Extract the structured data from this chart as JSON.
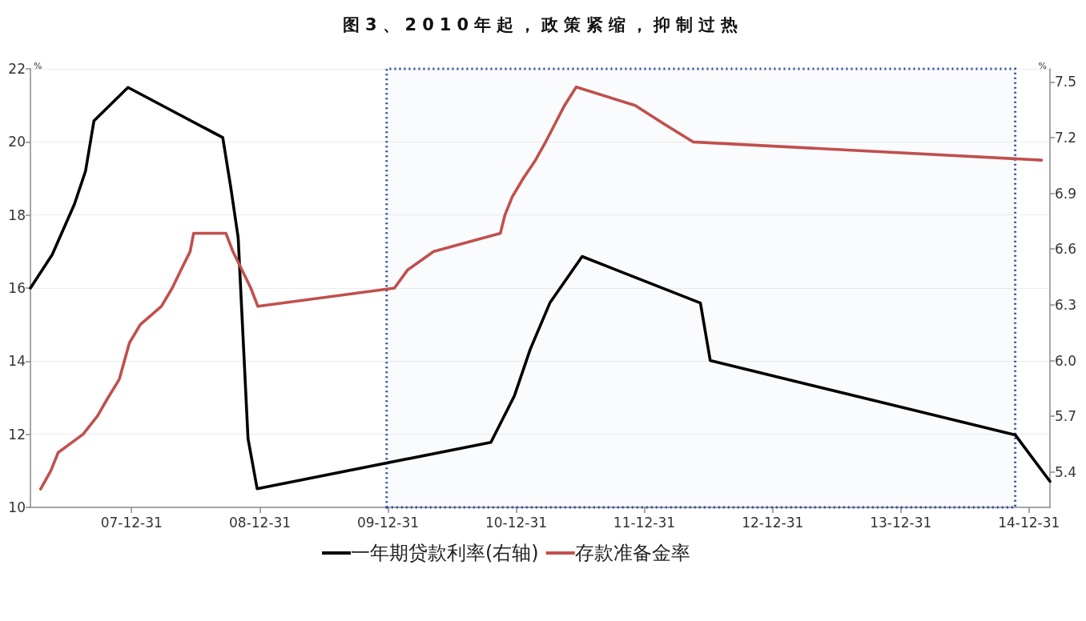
{
  "chart_data": {
    "type": "line",
    "title": "图3、2010年起，政策紧缩，抑制过热",
    "ylabel": "%",
    "y2label": "%",
    "xlim": [
      "2007-03-18",
      "2015-03-01"
    ],
    "xticks": [
      {
        "value": "2007-12-31",
        "label": "07-12-31"
      },
      {
        "value": "2008-12-31",
        "label": "08-12-31"
      },
      {
        "value": "2009-12-31",
        "label": "09-12-31"
      },
      {
        "value": "2010-12-31",
        "label": "10-12-31"
      },
      {
        "value": "2011-12-31",
        "label": "11-12-31"
      },
      {
        "value": "2012-12-31",
        "label": "12-12-31"
      },
      {
        "value": "2013-12-31",
        "label": "13-12-31"
      },
      {
        "value": "2014-12-31",
        "label": "14-12-31"
      }
    ],
    "ylim": [
      10,
      22
    ],
    "yticks": [
      10,
      12,
      14,
      16,
      18,
      20,
      22
    ],
    "y2lim": [
      5.21,
      7.57
    ],
    "y2ticks": [
      5.4,
      5.7,
      {
        "value": 6,
        "label": "6.0"
      },
      6.3,
      6.6,
      6.9,
      7.2,
      7.5
    ],
    "series": [
      {
        "name": "一年期贷款利率(右轴)",
        "color": "#000000",
        "axis": "y2",
        "x": [
          "2007-03-18",
          "2007-05-19",
          "2007-07-21",
          "2007-08-22",
          "2007-09-15",
          "2007-12-21",
          "2008-09-16",
          "2008-10-09",
          "2008-10-30",
          "2008-11-27",
          "2008-12-23",
          "2010-10-20",
          "2010-12-26",
          "2011-02-09",
          "2011-04-06",
          "2011-07-07",
          "2012-06-08",
          "2012-07-06",
          "2014-11-22",
          "2015-03-01"
        ],
        "values": [
          6.39,
          6.57,
          6.84,
          7.02,
          7.29,
          7.47,
          7.2,
          6.93,
          6.66,
          5.58,
          5.31,
          5.56,
          5.81,
          6.06,
          6.31,
          6.56,
          6.31,
          6.0,
          5.6,
          5.35
        ]
      },
      {
        "name": "存款准备金率",
        "color": "#c0504d",
        "x": [
          "2007-04-16",
          "2007-05-15",
          "2007-06-05",
          "2007-08-15",
          "2007-09-25",
          "2007-10-25",
          "2007-11-26",
          "2007-12-25",
          "2008-01-25",
          "2008-03-25",
          "2008-04-25",
          "2008-05-20",
          "2008-06-15",
          "2008-06-25",
          "2008-09-25",
          "2008-10-15",
          "2008-12-05",
          "2008-12-25",
          "2010-01-18",
          "2010-02-25",
          "2010-05-10",
          "2010-11-16",
          "2010-11-29",
          "2010-12-20",
          "2011-01-20",
          "2011-02-24",
          "2011-03-25",
          "2011-04-21",
          "2011-05-18",
          "2011-06-20",
          "2011-12-05",
          "2012-02-24",
          "2012-05-18",
          "2015-02-05"
        ],
        "values": [
          10.5,
          11,
          11.5,
          12,
          12.5,
          13,
          13.5,
          14.5,
          15,
          15.5,
          16,
          16.5,
          17,
          17.5,
          17.5,
          17,
          16,
          15.5,
          16,
          16.5,
          17,
          17.5,
          18,
          18.5,
          19,
          19.5,
          20,
          20.5,
          21,
          21.5,
          21,
          20.5,
          20,
          19.5
        ]
      }
    ],
    "bands": [
      {
        "axis": "x",
        "from": "2009-12-27",
        "to": "2014-11-22",
        "color": "#2e4a9e"
      }
    ],
    "grid": "y",
    "legend": "bottom"
  }
}
